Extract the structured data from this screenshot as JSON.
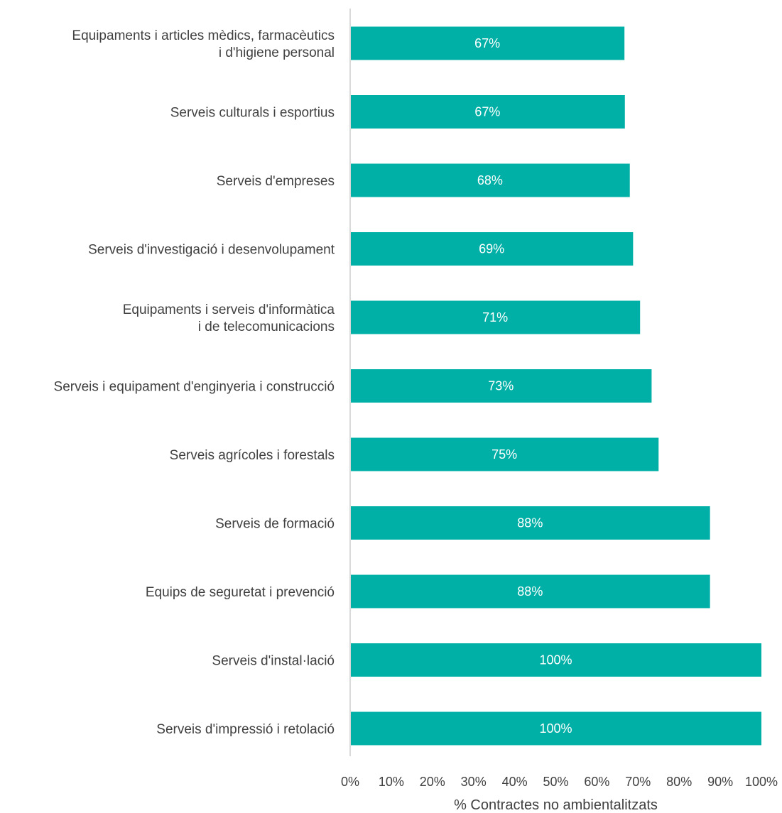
{
  "chart_data": {
    "type": "bar",
    "orientation": "horizontal",
    "categories": [
      "Equipaments i articles mèdics, farmacèutics i d'higiene personal",
      "Serveis culturals i esportius",
      "Serveis d'empreses",
      "Serveis d'investigació i desenvolupament",
      "Equipaments i serveis d'informàtica i de telecomunicacions",
      "Serveis i equipament d'enginyeria i construcció",
      "Serveis agrícoles i forestals",
      "Serveis de formació",
      "Equips de seguretat i prevenció",
      "Serveis d'instal·lació",
      "Serveis d'impressió i retolació"
    ],
    "category_lines": [
      [
        "Equipaments i articles mèdics, farmacèutics",
        "i d'higiene personal"
      ],
      [
        "Serveis culturals i esportius"
      ],
      [
        "Serveis d'empreses"
      ],
      [
        "Serveis d'investigació i desenvolupament"
      ],
      [
        "Equipaments i serveis d'informàtica",
        "i de telecomunicacions"
      ],
      [
        "Serveis i equipament d'enginyeria i construcció"
      ],
      [
        "Serveis agrícoles i forestals"
      ],
      [
        "Serveis de formació"
      ],
      [
        "Equips de seguretat i prevenció"
      ],
      [
        "Serveis d'instal·lació"
      ],
      [
        "Serveis d'impressió i retolació"
      ]
    ],
    "values": [
      66.7,
      66.8,
      68.0,
      68.8,
      70.5,
      73.3,
      75.0,
      87.5,
      87.5,
      100,
      100
    ],
    "data_labels": [
      "67%",
      "67%",
      "68%",
      "69%",
      "71%",
      "73%",
      "75%",
      "88%",
      "88%",
      "100%",
      "100%"
    ],
    "xlabel": "% Contractes no ambientalitzats",
    "ylabel": "",
    "title": "",
    "xlim": [
      0,
      100
    ],
    "xticks": [
      0,
      10,
      20,
      30,
      40,
      50,
      60,
      70,
      80,
      90,
      100
    ],
    "xtick_labels": [
      "0%",
      "10%",
      "20%",
      "30%",
      "40%",
      "50%",
      "60%",
      "70%",
      "80%",
      "90%",
      "100%"
    ],
    "grid": false,
    "legend": "none",
    "colors": {
      "bar": "#00B0A6",
      "axis": "#D9D9D9",
      "text": "#404040",
      "data_label": "#FFFFFF"
    }
  }
}
